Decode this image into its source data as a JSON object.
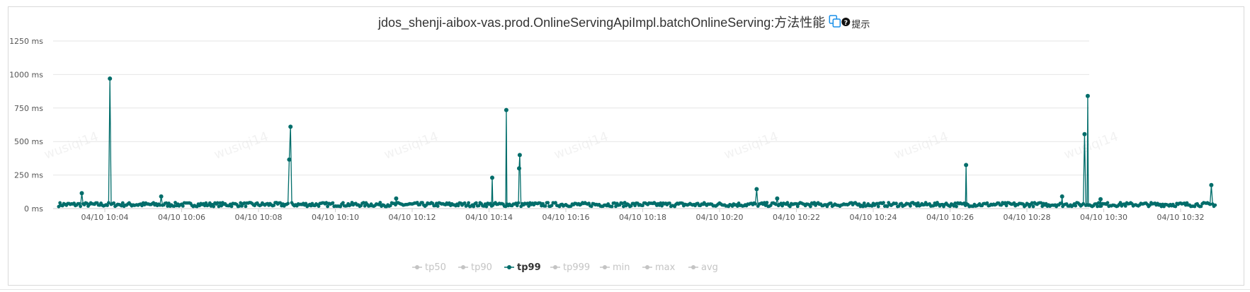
{
  "title": "jdos_shenji-aibox-vas.prod.OnlineServingApiImpl.batchOnlineServing:方法性能",
  "hint_label": "提示",
  "icons": {
    "copy": "copy-icon",
    "help": "question-circle-icon"
  },
  "watermark": "wusiqi14",
  "colors": {
    "accent": "#006d6a",
    "inactive": "#c4c4c4",
    "grid": "#e6e6e6",
    "copy_icon": "#1a8fe8"
  },
  "chart_data": {
    "type": "line",
    "title": "jdos_shenji-aibox-vas.prod.OnlineServingApiImpl.batchOnlineServing:方法性能",
    "xlabel": "",
    "ylabel": "",
    "x_range": [
      "04/10 10:02:48",
      "04/10 10:32:55"
    ],
    "ylim": [
      0,
      1250
    ],
    "y_ticks": [
      0,
      250,
      500,
      750,
      1000,
      1250
    ],
    "y_tick_labels": [
      "0 ms",
      "250 ms",
      "500 ms",
      "750 ms",
      "1000 ms",
      "1250 ms"
    ],
    "x_ticks": [
      "04/10 10:04",
      "04/10 10:06",
      "04/10 10:08",
      "04/10 10:10",
      "04/10 10:12",
      "04/10 10:14",
      "04/10 10:16",
      "04/10 10:18",
      "04/10 10:20",
      "04/10 10:22",
      "04/10 10:24",
      "04/10 10:26",
      "04/10 10:28",
      "04/10 10:30",
      "04/10 10:32"
    ],
    "grid": true,
    "legend_position": "bottom-center",
    "legend": [
      {
        "name": "tp50",
        "active": false
      },
      {
        "name": "tp90",
        "active": false
      },
      {
        "name": "tp99",
        "active": true
      },
      {
        "name": "tp999",
        "active": false
      },
      {
        "name": "min",
        "active": false
      },
      {
        "name": "max",
        "active": false
      },
      {
        "name": "avg",
        "active": false
      }
    ],
    "series": [
      {
        "name": "tp99",
        "baseline_range_ms": [
          15,
          45
        ],
        "peaks": [
          {
            "x": "04/10 10:03:24",
            "y": 115
          },
          {
            "x": "04/10 10:04:08",
            "y": 970
          },
          {
            "x": "04/10 10:05:28",
            "y": 90
          },
          {
            "x": "04/10 10:08:48",
            "y": 365
          },
          {
            "x": "04/10 10:08:50",
            "y": 610
          },
          {
            "x": "04/10 10:11:35",
            "y": 75
          },
          {
            "x": "04/10 10:14:05",
            "y": 230
          },
          {
            "x": "04/10 10:14:27",
            "y": 735
          },
          {
            "x": "04/10 10:14:47",
            "y": 300
          },
          {
            "x": "04/10 10:14:48",
            "y": 400
          },
          {
            "x": "04/10 10:20:58",
            "y": 145
          },
          {
            "x": "04/10 10:21:30",
            "y": 75
          },
          {
            "x": "04/10 10:26:25",
            "y": 325
          },
          {
            "x": "04/10 10:28:55",
            "y": 90
          },
          {
            "x": "04/10 10:29:30",
            "y": 555
          },
          {
            "x": "04/10 10:29:35",
            "y": 840
          },
          {
            "x": "04/10 10:29:55",
            "y": 70
          },
          {
            "x": "04/10 10:32:48",
            "y": 175
          }
        ]
      }
    ]
  }
}
